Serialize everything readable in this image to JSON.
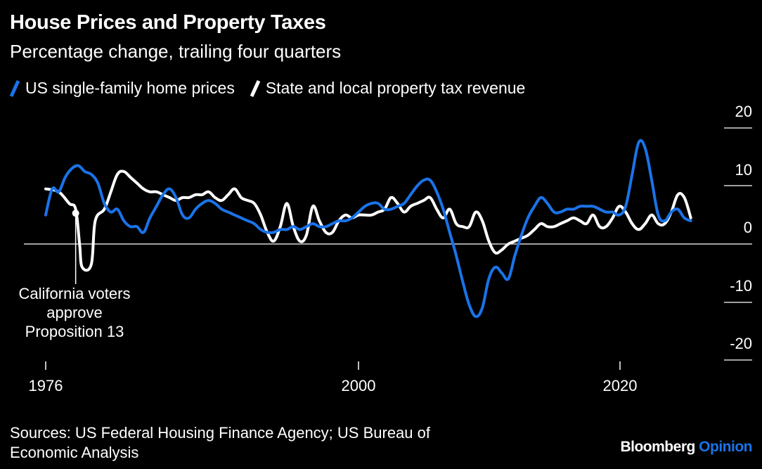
{
  "header": {
    "title": "House Prices and Property Taxes",
    "subtitle": "Percentage change, trailing four quarters"
  },
  "footer": {
    "sources": "Sources: US Federal Housing Finance Agency; US Bureau of Economic Analysis",
    "brand_main": "Bloomberg",
    "brand_accent": "Opinion",
    "brand_accent_color": "#1a73e8"
  },
  "chart_data": {
    "type": "line",
    "title": "House Prices and Property Taxes",
    "subtitle": "Percentage change, trailing four quarters",
    "xlabel": "",
    "ylabel": "",
    "xlim": [
      1976,
      2026
    ],
    "ylim": [
      -20,
      20
    ],
    "x_ticks": [
      "1976",
      "2000",
      "2020"
    ],
    "y_ticks": [
      "20",
      "10",
      "0",
      "-10",
      "-20"
    ],
    "legend_position": "top-left",
    "grid": false,
    "annotation": {
      "text_lines": [
        "California voters",
        "approve",
        "Proposition 13"
      ],
      "x": 1978.3,
      "y": 5.3
    },
    "series": [
      {
        "name": "US single-family home prices",
        "color": "#1a73e8",
        "points": [
          [
            1976.0,
            5.0
          ],
          [
            1976.5,
            9.5
          ],
          [
            1977.0,
            9.0
          ],
          [
            1977.5,
            11.5
          ],
          [
            1978.0,
            13.0
          ],
          [
            1978.5,
            13.5
          ],
          [
            1979.0,
            12.5
          ],
          [
            1979.5,
            12.0
          ],
          [
            1980.0,
            10.5
          ],
          [
            1980.5,
            7.0
          ],
          [
            1981.0,
            5.5
          ],
          [
            1981.5,
            6.0
          ],
          [
            1982.0,
            4.0
          ],
          [
            1982.5,
            3.0
          ],
          [
            1983.0,
            3.0
          ],
          [
            1983.5,
            2.0
          ],
          [
            1984.0,
            4.5
          ],
          [
            1984.5,
            6.5
          ],
          [
            1985.0,
            8.5
          ],
          [
            1985.5,
            9.5
          ],
          [
            1986.0,
            8.0
          ],
          [
            1986.5,
            5.0
          ],
          [
            1987.0,
            4.5
          ],
          [
            1987.5,
            6.0
          ],
          [
            1988.0,
            7.0
          ],
          [
            1988.5,
            7.5
          ],
          [
            1989.0,
            7.0
          ],
          [
            1989.5,
            6.0
          ],
          [
            1990.0,
            5.5
          ],
          [
            1990.5,
            5.0
          ],
          [
            1991.0,
            4.5
          ],
          [
            1991.5,
            4.0
          ],
          [
            1992.0,
            3.5
          ],
          [
            1992.5,
            2.5
          ],
          [
            1993.0,
            2.0
          ],
          [
            1993.5,
            2.0
          ],
          [
            1994.0,
            2.5
          ],
          [
            1994.5,
            2.5
          ],
          [
            1995.0,
            3.0
          ],
          [
            1995.5,
            2.5
          ],
          [
            1996.0,
            3.0
          ],
          [
            1996.5,
            3.5
          ],
          [
            1997.0,
            3.0
          ],
          [
            1997.5,
            3.0
          ],
          [
            1998.0,
            3.5
          ],
          [
            1998.5,
            4.0
          ],
          [
            1999.0,
            4.0
          ],
          [
            1999.5,
            4.5
          ],
          [
            2000.0,
            5.5
          ],
          [
            2000.5,
            6.5
          ],
          [
            2001.0,
            7.0
          ],
          [
            2001.5,
            7.0
          ],
          [
            2002.0,
            6.0
          ],
          [
            2002.5,
            6.0
          ],
          [
            2003.0,
            6.5
          ],
          [
            2003.5,
            7.0
          ],
          [
            2004.0,
            8.5
          ],
          [
            2004.5,
            10.0
          ],
          [
            2005.0,
            11.0
          ],
          [
            2005.5,
            11.0
          ],
          [
            2006.0,
            9.0
          ],
          [
            2006.5,
            6.0
          ],
          [
            2007.0,
            2.0
          ],
          [
            2007.5,
            -2.0
          ],
          [
            2008.0,
            -6.5
          ],
          [
            2008.5,
            -10.5
          ],
          [
            2009.0,
            -12.5
          ],
          [
            2009.5,
            -11.0
          ],
          [
            2010.0,
            -6.0
          ],
          [
            2010.5,
            -4.0
          ],
          [
            2011.0,
            -5.0
          ],
          [
            2011.5,
            -6.0
          ],
          [
            2012.0,
            -2.0
          ],
          [
            2012.5,
            1.5
          ],
          [
            2013.0,
            4.5
          ],
          [
            2013.5,
            6.5
          ],
          [
            2014.0,
            8.0
          ],
          [
            2014.5,
            7.0
          ],
          [
            2015.0,
            5.5
          ],
          [
            2015.5,
            5.5
          ],
          [
            2016.0,
            6.0
          ],
          [
            2016.5,
            6.0
          ],
          [
            2017.0,
            6.5
          ],
          [
            2017.5,
            6.5
          ],
          [
            2018.0,
            6.5
          ],
          [
            2018.5,
            6.0
          ],
          [
            2019.0,
            5.5
          ],
          [
            2019.5,
            5.5
          ],
          [
            2020.0,
            5.0
          ],
          [
            2020.5,
            6.5
          ],
          [
            2021.0,
            12.0
          ],
          [
            2021.5,
            17.5
          ],
          [
            2022.0,
            16.5
          ],
          [
            2022.5,
            11.0
          ],
          [
            2023.0,
            5.0
          ],
          [
            2023.5,
            4.0
          ],
          [
            2024.0,
            5.5
          ],
          [
            2024.5,
            6.0
          ],
          [
            2025.0,
            4.5
          ],
          [
            2025.5,
            4.0
          ]
        ]
      },
      {
        "name": "State and local property tax revenue",
        "color": "#ffffff",
        "points": [
          [
            1976.0,
            9.5
          ],
          [
            1977.0,
            9.0
          ],
          [
            1977.8,
            7.0
          ],
          [
            1978.3,
            6.0
          ],
          [
            1978.6,
            0.0
          ],
          [
            1978.8,
            -4.0
          ],
          [
            1979.5,
            -3.5
          ],
          [
            1979.8,
            4.0
          ],
          [
            1980.5,
            6.0
          ],
          [
            1981.0,
            9.0
          ],
          [
            1981.5,
            12.0
          ],
          [
            1982.0,
            12.5
          ],
          [
            1982.5,
            11.5
          ],
          [
            1983.0,
            10.5
          ],
          [
            1983.5,
            9.5
          ],
          [
            1984.0,
            9.0
          ],
          [
            1984.5,
            9.0
          ],
          [
            1985.0,
            8.5
          ],
          [
            1985.5,
            8.0
          ],
          [
            1986.0,
            7.5
          ],
          [
            1986.5,
            8.0
          ],
          [
            1987.0,
            8.0
          ],
          [
            1987.5,
            8.5
          ],
          [
            1988.0,
            8.5
          ],
          [
            1988.5,
            9.0
          ],
          [
            1989.0,
            8.0
          ],
          [
            1989.5,
            7.5
          ],
          [
            1990.0,
            8.5
          ],
          [
            1990.5,
            9.5
          ],
          [
            1991.0,
            8.0
          ],
          [
            1991.5,
            7.5
          ],
          [
            1992.0,
            7.0
          ],
          [
            1992.5,
            5.0
          ],
          [
            1993.0,
            2.0
          ],
          [
            1993.5,
            0.5
          ],
          [
            1994.0,
            3.0
          ],
          [
            1994.5,
            7.0
          ],
          [
            1995.0,
            3.0
          ],
          [
            1995.5,
            0.5
          ],
          [
            1996.0,
            1.5
          ],
          [
            1996.5,
            6.5
          ],
          [
            1997.0,
            4.0
          ],
          [
            1997.5,
            2.0
          ],
          [
            1998.0,
            2.0
          ],
          [
            1998.5,
            4.0
          ],
          [
            1999.0,
            5.0
          ],
          [
            1999.5,
            4.5
          ],
          [
            2000.0,
            5.0
          ],
          [
            2000.5,
            5.0
          ],
          [
            2001.0,
            5.0
          ],
          [
            2001.5,
            5.5
          ],
          [
            2002.0,
            6.0
          ],
          [
            2002.5,
            8.0
          ],
          [
            2003.0,
            7.0
          ],
          [
            2003.5,
            5.5
          ],
          [
            2004.0,
            6.5
          ],
          [
            2004.5,
            7.0
          ],
          [
            2005.0,
            7.5
          ],
          [
            2005.5,
            8.0
          ],
          [
            2006.0,
            6.0
          ],
          [
            2006.5,
            4.5
          ],
          [
            2007.0,
            6.0
          ],
          [
            2007.5,
            3.5
          ],
          [
            2008.0,
            3.0
          ],
          [
            2008.5,
            3.0
          ],
          [
            2009.0,
            5.5
          ],
          [
            2009.5,
            4.0
          ],
          [
            2010.0,
            0.5
          ],
          [
            2010.5,
            -1.5
          ],
          [
            2011.0,
            -1.0
          ],
          [
            2011.5,
            0.0
          ],
          [
            2012.0,
            0.5
          ],
          [
            2012.5,
            1.0
          ],
          [
            2013.0,
            1.5
          ],
          [
            2013.5,
            2.5
          ],
          [
            2014.0,
            3.5
          ],
          [
            2014.5,
            3.0
          ],
          [
            2015.0,
            3.0
          ],
          [
            2015.5,
            3.5
          ],
          [
            2016.0,
            4.0
          ],
          [
            2016.5,
            4.5
          ],
          [
            2017.0,
            4.0
          ],
          [
            2017.5,
            3.5
          ],
          [
            2018.0,
            5.0
          ],
          [
            2018.5,
            3.0
          ],
          [
            2019.0,
            3.0
          ],
          [
            2019.5,
            4.5
          ],
          [
            2020.0,
            6.5
          ],
          [
            2020.5,
            5.5
          ],
          [
            2021.0,
            3.5
          ],
          [
            2021.5,
            2.5
          ],
          [
            2022.0,
            3.5
          ],
          [
            2022.5,
            5.0
          ],
          [
            2023.0,
            3.5
          ],
          [
            2023.5,
            3.5
          ],
          [
            2024.0,
            5.5
          ],
          [
            2024.5,
            8.5
          ],
          [
            2025.0,
            8.0
          ],
          [
            2025.5,
            4.5
          ]
        ]
      }
    ]
  }
}
